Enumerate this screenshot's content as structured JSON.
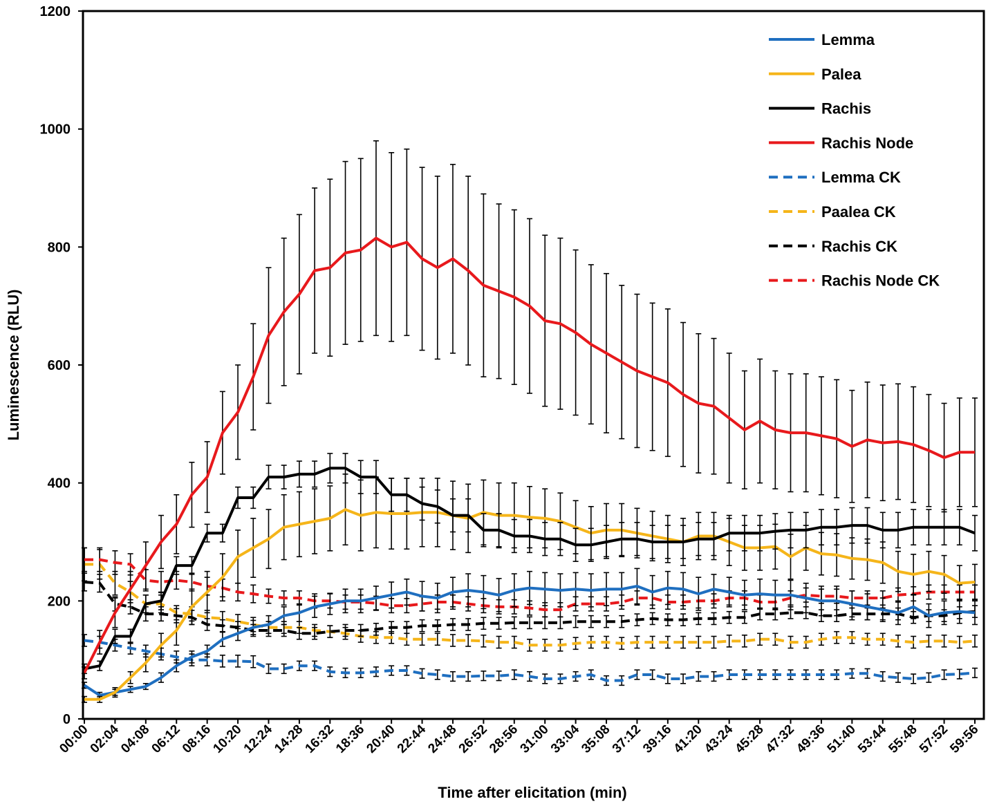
{
  "chart_data": {
    "type": "line",
    "xlabel": "Time after elicitation (min)",
    "ylabel": "Luminescence (RLU)",
    "ylim": [
      0,
      1200
    ],
    "yticks": [
      0,
      200,
      400,
      600,
      800,
      1000,
      1200
    ],
    "grid": false,
    "legend_position": "top-right",
    "x_tick_labels": [
      "00:00",
      "02:04",
      "04:08",
      "06:12",
      "08:16",
      "10:20",
      "12:24",
      "14:28",
      "16:32",
      "18:36",
      "20:40",
      "22:44",
      "24:48",
      "26:52",
      "28:56",
      "31:00",
      "33:04",
      "35:08",
      "37:12",
      "39:16",
      "41:20",
      "43:24",
      "45:28",
      "47:32",
      "49:36",
      "51:40",
      "53:44",
      "55:48",
      "57:52",
      "59:56"
    ],
    "series": [
      {
        "name": "Lemma",
        "color": "#1f6fc0",
        "dashed": false,
        "values": [
          57,
          40,
          45,
          50,
          55,
          70,
          90,
          105,
          115,
          135,
          145,
          155,
          160,
          175,
          180,
          190,
          195,
          200,
          200,
          205,
          210,
          215,
          208,
          205,
          215,
          218,
          215,
          210,
          218,
          222,
          220,
          218,
          220,
          218,
          220,
          220,
          225,
          215,
          222,
          220,
          212,
          220,
          215,
          210,
          212,
          210,
          210,
          205,
          200,
          200,
          195,
          190,
          185,
          180,
          190,
          175,
          180,
          182,
          180
        ],
        "errors": [
          5,
          5,
          5,
          5,
          5,
          8,
          10,
          10,
          10,
          12,
          12,
          12,
          15,
          15,
          15,
          18,
          18,
          20,
          20,
          20,
          22,
          22,
          25,
          25,
          25,
          28,
          28,
          28,
          28,
          28,
          28,
          28,
          28,
          28,
          28,
          28,
          30,
          28,
          28,
          28,
          28,
          25,
          25,
          25,
          25,
          25,
          25,
          25,
          25,
          25,
          22,
          22,
          20,
          20,
          20,
          20,
          20,
          20,
          20
        ]
      },
      {
        "name": "Palea",
        "color": "#f5b51a",
        "dashed": false,
        "values": [
          33,
          33,
          45,
          70,
          95,
          125,
          150,
          190,
          215,
          240,
          275,
          290,
          305,
          325,
          330,
          335,
          340,
          355,
          345,
          350,
          348,
          348,
          350,
          350,
          345,
          340,
          350,
          345,
          345,
          342,
          340,
          335,
          325,
          315,
          320,
          320,
          315,
          310,
          305,
          300,
          310,
          310,
          300,
          290,
          290,
          292,
          275,
          290,
          280,
          278,
          272,
          270,
          265,
          250,
          245,
          250,
          245,
          230,
          232
        ],
        "errors": [
          5,
          5,
          8,
          10,
          15,
          20,
          25,
          30,
          35,
          40,
          45,
          50,
          50,
          55,
          55,
          55,
          55,
          60,
          60,
          60,
          60,
          60,
          58,
          58,
          58,
          58,
          55,
          55,
          55,
          52,
          50,
          48,
          45,
          45,
          45,
          45,
          42,
          42,
          40,
          40,
          40,
          40,
          40,
          38,
          38,
          38,
          38,
          38,
          36,
          36,
          35,
          35,
          35,
          34,
          34,
          34,
          32,
          30,
          30
        ]
      },
      {
        "name": "Rachis",
        "color": "#000000",
        "dashed": false,
        "values": [
          85,
          90,
          140,
          140,
          195,
          200,
          260,
          260,
          315,
          315,
          375,
          375,
          410,
          410,
          415,
          415,
          425,
          425,
          410,
          410,
          380,
          380,
          365,
          360,
          345,
          345,
          320,
          320,
          310,
          310,
          305,
          305,
          295,
          295,
          300,
          305,
          305,
          300,
          300,
          300,
          305,
          305,
          315,
          315,
          315,
          318,
          320,
          320,
          325,
          325,
          328,
          328,
          320,
          320,
          325,
          325,
          325,
          325,
          315
        ],
        "errors": [
          8,
          8,
          12,
          12,
          15,
          15,
          15,
          15,
          15,
          15,
          18,
          18,
          20,
          20,
          22,
          22,
          25,
          25,
          28,
          28,
          28,
          28,
          28,
          28,
          28,
          28,
          28,
          28,
          28,
          28,
          28,
          28,
          28,
          28,
          28,
          28,
          28,
          28,
          28,
          28,
          28,
          28,
          30,
          30,
          30,
          30,
          30,
          30,
          30,
          30,
          30,
          30,
          30,
          30,
          30,
          30,
          30,
          30,
          30
        ]
      },
      {
        "name": "Rachis Node",
        "color": "#e8191c",
        "dashed": false,
        "values": [
          78,
          130,
          180,
          220,
          260,
          300,
          330,
          380,
          410,
          485,
          520,
          580,
          650,
          690,
          720,
          760,
          765,
          790,
          795,
          815,
          800,
          808,
          780,
          765,
          780,
          760,
          735,
          725,
          715,
          700,
          675,
          670,
          655,
          635,
          620,
          605,
          590,
          580,
          570,
          550,
          535,
          530,
          510,
          490,
          505,
          490,
          485,
          485,
          480,
          475,
          462,
          473,
          468,
          470,
          465,
          455,
          443,
          452,
          452
        ],
        "errors": [
          10,
          20,
          25,
          30,
          40,
          45,
          50,
          55,
          60,
          70,
          80,
          90,
          115,
          125,
          135,
          140,
          150,
          155,
          155,
          165,
          160,
          158,
          155,
          155,
          160,
          160,
          155,
          148,
          148,
          148,
          145,
          145,
          140,
          135,
          135,
          130,
          130,
          125,
          125,
          122,
          118,
          115,
          110,
          100,
          105,
          100,
          100,
          100,
          100,
          100,
          95,
          98,
          98,
          98,
          98,
          95,
          92,
          92,
          92
        ]
      },
      {
        "name": "Lemma CK",
        "color": "#1f6fc0",
        "dashed": true,
        "values": [
          133,
          130,
          125,
          120,
          115,
          110,
          105,
          100,
          100,
          98,
          98,
          97,
          85,
          85,
          90,
          90,
          80,
          78,
          78,
          80,
          82,
          82,
          77,
          75,
          72,
          72,
          73,
          73,
          75,
          72,
          68,
          68,
          72,
          75,
          65,
          65,
          75,
          75,
          68,
          68,
          72,
          72,
          75,
          75,
          75,
          75,
          75,
          75,
          75,
          75,
          77,
          77,
          72,
          70,
          68,
          70,
          75,
          76,
          78
        ],
        "errors": [
          10,
          10,
          10,
          10,
          10,
          10,
          10,
          10,
          10,
          10,
          10,
          10,
          8,
          8,
          8,
          8,
          8,
          8,
          8,
          8,
          8,
          8,
          8,
          8,
          8,
          8,
          8,
          8,
          8,
          8,
          8,
          8,
          8,
          8,
          8,
          8,
          8,
          8,
          8,
          8,
          8,
          8,
          8,
          8,
          8,
          8,
          8,
          8,
          8,
          8,
          8,
          8,
          8,
          8,
          8,
          8,
          8,
          8,
          8
        ]
      },
      {
        "name": "Paalea CK",
        "color": "#f5b51a",
        "dashed": true,
        "values": [
          262,
          262,
          230,
          215,
          195,
          195,
          180,
          178,
          172,
          170,
          165,
          160,
          155,
          155,
          155,
          150,
          148,
          145,
          140,
          138,
          138,
          135,
          135,
          135,
          133,
          133,
          132,
          130,
          130,
          125,
          125,
          125,
          128,
          130,
          130,
          128,
          130,
          130,
          130,
          130,
          130,
          130,
          132,
          132,
          135,
          135,
          130,
          130,
          135,
          138,
          138,
          135,
          135,
          132,
          130,
          132,
          132,
          130,
          132
        ],
        "errors": [
          28,
          25,
          20,
          18,
          15,
          15,
          12,
          12,
          12,
          12,
          12,
          12,
          10,
          10,
          10,
          10,
          10,
          10,
          10,
          10,
          10,
          10,
          10,
          10,
          10,
          10,
          10,
          10,
          10,
          10,
          10,
          10,
          10,
          10,
          10,
          10,
          10,
          10,
          10,
          10,
          10,
          10,
          10,
          10,
          10,
          10,
          10,
          10,
          10,
          10,
          10,
          10,
          10,
          10,
          10,
          10,
          10,
          10,
          10
        ]
      },
      {
        "name": "Rachis CK",
        "color": "#000000",
        "dashed": true,
        "values": [
          232,
          230,
          195,
          190,
          178,
          178,
          175,
          172,
          160,
          158,
          155,
          150,
          150,
          150,
          145,
          145,
          148,
          150,
          150,
          152,
          155,
          155,
          158,
          158,
          160,
          160,
          162,
          162,
          163,
          163,
          163,
          163,
          165,
          165,
          165,
          165,
          168,
          170,
          168,
          168,
          170,
          170,
          172,
          172,
          178,
          178,
          180,
          180,
          175,
          175,
          178,
          178,
          178,
          178,
          172,
          175,
          175,
          180,
          182
        ],
        "errors": [
          15,
          15,
          12,
          12,
          12,
          12,
          12,
          12,
          10,
          10,
          10,
          10,
          10,
          10,
          10,
          10,
          10,
          10,
          10,
          10,
          10,
          10,
          10,
          10,
          10,
          10,
          10,
          10,
          10,
          10,
          10,
          10,
          10,
          10,
          10,
          10,
          10,
          10,
          10,
          10,
          10,
          10,
          10,
          10,
          10,
          10,
          10,
          10,
          10,
          10,
          10,
          10,
          10,
          10,
          10,
          10,
          10,
          10,
          10
        ]
      },
      {
        "name": "Rachis Node CK",
        "color": "#e8191c",
        "dashed": true,
        "values": [
          270,
          270,
          265,
          262,
          235,
          232,
          235,
          232,
          225,
          222,
          215,
          212,
          208,
          205,
          205,
          200,
          200,
          198,
          198,
          196,
          192,
          192,
          195,
          198,
          198,
          195,
          192,
          190,
          190,
          188,
          185,
          185,
          195,
          195,
          195,
          198,
          205,
          205,
          198,
          198,
          200,
          200,
          205,
          205,
          198,
          198,
          205,
          210,
          208,
          208,
          205,
          205,
          205,
          210,
          212,
          215,
          215,
          215,
          215
        ],
        "errors": [
          20,
          20,
          20,
          18,
          18,
          18,
          15,
          15,
          15,
          15,
          15,
          15,
          12,
          12,
          12,
          12,
          12,
          12,
          12,
          12,
          12,
          12,
          12,
          12,
          12,
          12,
          12,
          12,
          12,
          12,
          12,
          12,
          12,
          12,
          12,
          12,
          12,
          12,
          12,
          12,
          12,
          12,
          12,
          12,
          12,
          12,
          12,
          12,
          12,
          12,
          12,
          12,
          12,
          12,
          12,
          12,
          12,
          12,
          12
        ]
      }
    ]
  }
}
